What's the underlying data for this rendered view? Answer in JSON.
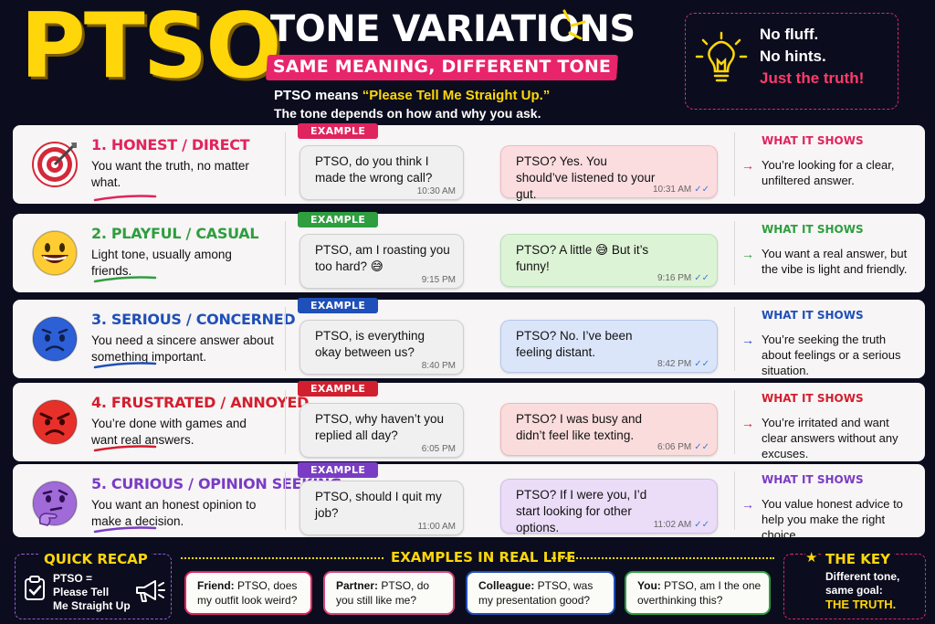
{
  "header": {
    "logo": "PTSO",
    "title": "TONE VARIATIONS",
    "banner": "SAME MEANING, DIFFERENT TONE",
    "desc_prefix": "PTSO means ",
    "desc_highlight": "“Please Tell Me Straight Up.”",
    "desc_line2": "The tone depends on how and why you ask."
  },
  "truth_box": {
    "icon": "lightbulb-icon",
    "line1": "No fluff.",
    "line2": "No hints.",
    "line3": "Just the truth!"
  },
  "rows": [
    {
      "title": "1. HONEST / DIRECT",
      "color": "#e0245e",
      "icon": "target-icon",
      "desc": "You want the truth, no matter what.",
      "tag": "EXAMPLE",
      "msg_left": "PTSO, do you think I made the wrong call?",
      "time_left": "10:30 AM",
      "msg_right": "PTSO? Yes. You should’ve listened to your gut.",
      "time_right": "10:31 AM",
      "bubble_color": "#fbdde0",
      "what_label": "WHAT IT SHOWS",
      "what_text": "You’re looking for a clear, unfiltered answer."
    },
    {
      "title": "2. PLAYFUL / CASUAL",
      "color": "#2e9e3f",
      "icon": "grinning-face-icon",
      "desc": "Light tone, usually among friends.",
      "tag": "EXAMPLE",
      "msg_left": "PTSO, am I roasting you too hard? 😅",
      "time_left": "9:15 PM",
      "msg_right": "PTSO? A little 😅 But it’s funny!",
      "time_right": "9:16 PM",
      "bubble_color": "#ddf3d6",
      "what_label": "WHAT IT SHOWS",
      "what_text": "You want a real answer, but the vibe is light and friendly."
    },
    {
      "title": "3. SERIOUS / CONCERNED",
      "color": "#1f4fb8",
      "icon": "worried-face-icon",
      "desc": "You need a sincere answer about something important.",
      "tag": "EXAMPLE",
      "msg_left": "PTSO, is everything okay between us?",
      "time_left": "8:40 PM",
      "msg_right": "PTSO? No. I’ve been feeling distant.",
      "time_right": "8:42 PM",
      "bubble_color": "#dbe5fa",
      "what_label": "WHAT IT SHOWS",
      "what_text": "You’re seeking the truth about feelings or a serious situation."
    },
    {
      "title": "4. FRUSTRATED / ANNOYED",
      "color": "#d21f2f",
      "icon": "angry-face-icon",
      "desc": "You’re done with games and want real answers.",
      "tag": "EXAMPLE",
      "msg_left": "PTSO, why haven’t you replied all day?",
      "time_left": "6:05 PM",
      "msg_right": "PTSO? I was busy and didn’t feel like texting.",
      "time_right": "6:06 PM",
      "bubble_color": "#fbdcdc",
      "what_label": "WHAT IT SHOWS",
      "what_text": "You’re irritated and want clear answers without any excuses."
    },
    {
      "title": "5. CURIOUS / OPINION SEEKING",
      "color": "#7a3cc4",
      "icon": "thinking-face-icon",
      "desc": "You want an honest opinion to make a decision.",
      "tag": "EXAMPLE",
      "msg_left": "PTSO, should I quit my job?",
      "time_left": "11:00 AM",
      "msg_right": "PTSO? If I were you, I’d start looking for other options.",
      "time_right": "11:02 AM",
      "bubble_color": "#ebdcf8",
      "what_label": "WHAT IT SHOWS",
      "what_text": "You value honest advice to help you make the right choice."
    }
  ],
  "footer": {
    "recap_title": "QUICK RECAP",
    "recap_line1": "PTSO =",
    "recap_line2": "Please Tell",
    "recap_line3": "Me Straight Up",
    "examples_title": "EXAMPLES IN REAL LIFE",
    "examples": [
      {
        "who": "Friend:",
        "text": " PTSO, does my outfit look weird?",
        "border": "#e0245e"
      },
      {
        "who": "Partner:",
        "text": " PTSO, do you still like me?",
        "border": "#d4477a"
      },
      {
        "who": "Colleague:",
        "text": " PTSO, was my presentation good?",
        "border": "#1f4fb8"
      },
      {
        "who": "You:",
        "text": " PTSO, am I the one overthinking this?",
        "border": "#2e9e3f"
      }
    ],
    "key_title": "THE KEY",
    "key_line1": "Different tone,",
    "key_line2": "same goal:",
    "key_line3": "THE TRUTH."
  }
}
